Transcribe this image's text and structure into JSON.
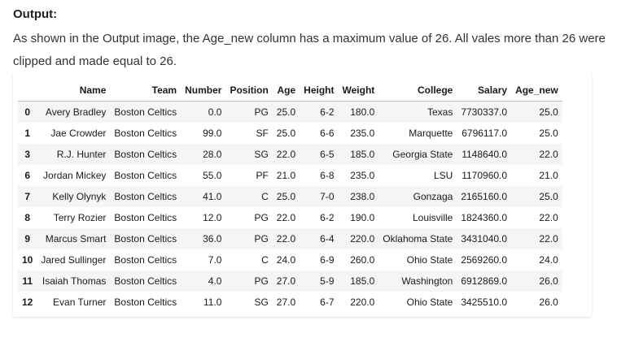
{
  "heading": "Output:",
  "description": "As shown in the Output image, the Age_new column has a maximum value of 26. All vales more than 26 were clipped and made equal to 26.",
  "table": {
    "index_header": "",
    "columns": [
      "Name",
      "Team",
      "Number",
      "Position",
      "Age",
      "Height",
      "Weight",
      "College",
      "Salary",
      "Age_new"
    ],
    "rows": [
      {
        "index": "0",
        "cells": [
          "Avery Bradley",
          "Boston Celtics",
          "0.0",
          "PG",
          "25.0",
          "6-2",
          "180.0",
          "Texas",
          "7730337.0",
          "25.0"
        ]
      },
      {
        "index": "1",
        "cells": [
          "Jae Crowder",
          "Boston Celtics",
          "99.0",
          "SF",
          "25.0",
          "6-6",
          "235.0",
          "Marquette",
          "6796117.0",
          "25.0"
        ]
      },
      {
        "index": "3",
        "cells": [
          "R.J. Hunter",
          "Boston Celtics",
          "28.0",
          "SG",
          "22.0",
          "6-5",
          "185.0",
          "Georgia State",
          "1148640.0",
          "22.0"
        ]
      },
      {
        "index": "6",
        "cells": [
          "Jordan Mickey",
          "Boston Celtics",
          "55.0",
          "PF",
          "21.0",
          "6-8",
          "235.0",
          "LSU",
          "1170960.0",
          "21.0"
        ]
      },
      {
        "index": "7",
        "cells": [
          "Kelly Olynyk",
          "Boston Celtics",
          "41.0",
          "C",
          "25.0",
          "7-0",
          "238.0",
          "Gonzaga",
          "2165160.0",
          "25.0"
        ]
      },
      {
        "index": "8",
        "cells": [
          "Terry Rozier",
          "Boston Celtics",
          "12.0",
          "PG",
          "22.0",
          "6-2",
          "190.0",
          "Louisville",
          "1824360.0",
          "22.0"
        ]
      },
      {
        "index": "9",
        "cells": [
          "Marcus Smart",
          "Boston Celtics",
          "36.0",
          "PG",
          "22.0",
          "6-4",
          "220.0",
          "Oklahoma State",
          "3431040.0",
          "22.0"
        ]
      },
      {
        "index": "10",
        "cells": [
          "Jared Sullinger",
          "Boston Celtics",
          "7.0",
          "C",
          "24.0",
          "6-9",
          "260.0",
          "Ohio State",
          "2569260.0",
          "24.0"
        ]
      },
      {
        "index": "11",
        "cells": [
          "Isaiah Thomas",
          "Boston Celtics",
          "4.0",
          "PG",
          "27.0",
          "5-9",
          "185.0",
          "Washington",
          "6912869.0",
          "26.0"
        ]
      },
      {
        "index": "12",
        "cells": [
          "Evan Turner",
          "Boston Celtics",
          "11.0",
          "SG",
          "27.0",
          "6-7",
          "220.0",
          "Ohio State",
          "3425510.0",
          "26.0"
        ]
      }
    ]
  }
}
